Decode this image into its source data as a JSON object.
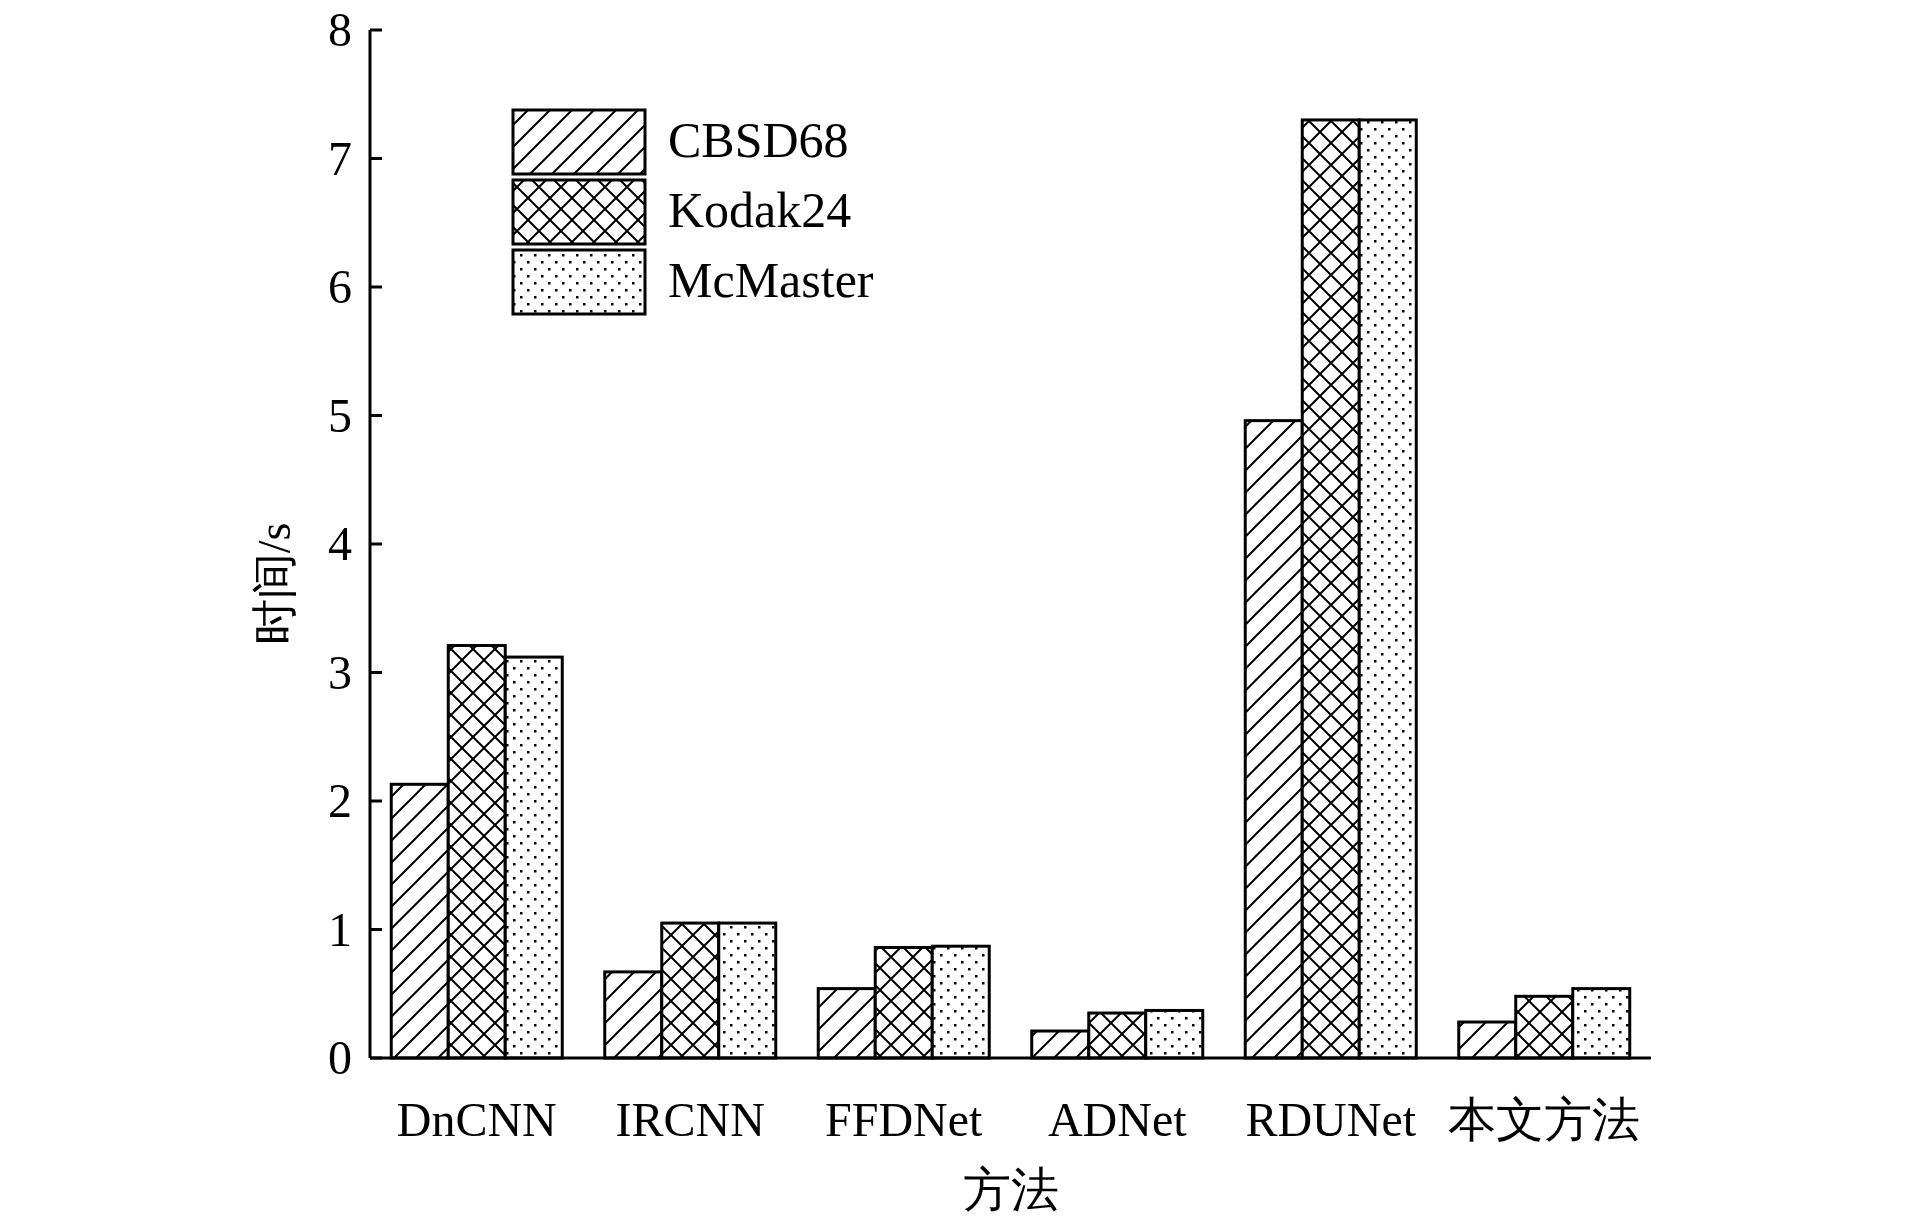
{
  "chart_data": {
    "type": "bar",
    "xlabel": "方法",
    "ylabel": "时间/s",
    "categories": [
      "DnCNN",
      "IRCNN",
      "FFDNet",
      "ADNet",
      "RDUNet",
      "本文方法"
    ],
    "series": [
      {
        "name": "CBSD68",
        "values": [
          2.13,
          0.67,
          0.54,
          0.21,
          4.96,
          0.28
        ]
      },
      {
        "name": "Kodak24",
        "values": [
          3.21,
          1.05,
          0.86,
          0.35,
          7.3,
          0.48
        ]
      },
      {
        "name": "McMaster",
        "values": [
          3.12,
          1.05,
          0.87,
          0.37,
          7.3,
          0.54
        ]
      }
    ],
    "ylim": [
      0,
      8
    ],
    "yticks": [
      0,
      1,
      2,
      3,
      4,
      5,
      6,
      7,
      8
    ],
    "legend": "top left",
    "grid": false
  }
}
